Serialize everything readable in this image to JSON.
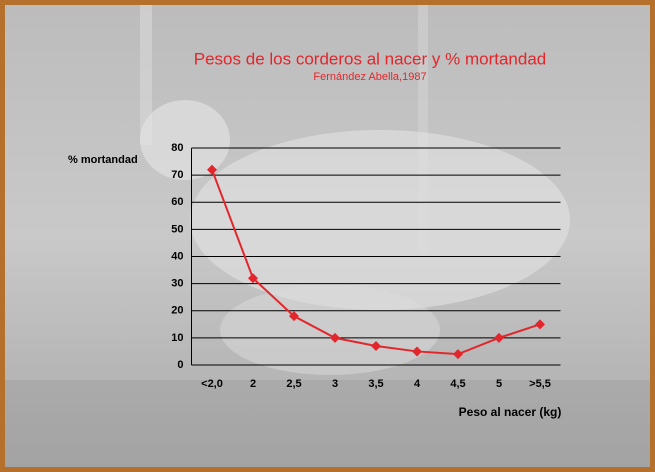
{
  "chart_data": {
    "type": "line",
    "title": "Pesos de los corderos al nacer y % mortandad",
    "subtitle": "Fernández Abella,1987",
    "y_label": "% mortandad",
    "x_label": "Peso al nacer (kg)",
    "categories": [
      "<2,0",
      "2",
      "2,5",
      "3",
      "3,5",
      "4",
      "4,5",
      "5",
      ">5,5"
    ],
    "values": [
      72,
      32,
      18,
      10,
      7,
      5,
      4,
      10,
      15
    ],
    "color": "#e3262b",
    "ylim": [
      0,
      80
    ],
    "yticks": [
      0,
      10,
      20,
      30,
      40,
      50,
      60,
      70,
      80
    ],
    "grid": true
  }
}
